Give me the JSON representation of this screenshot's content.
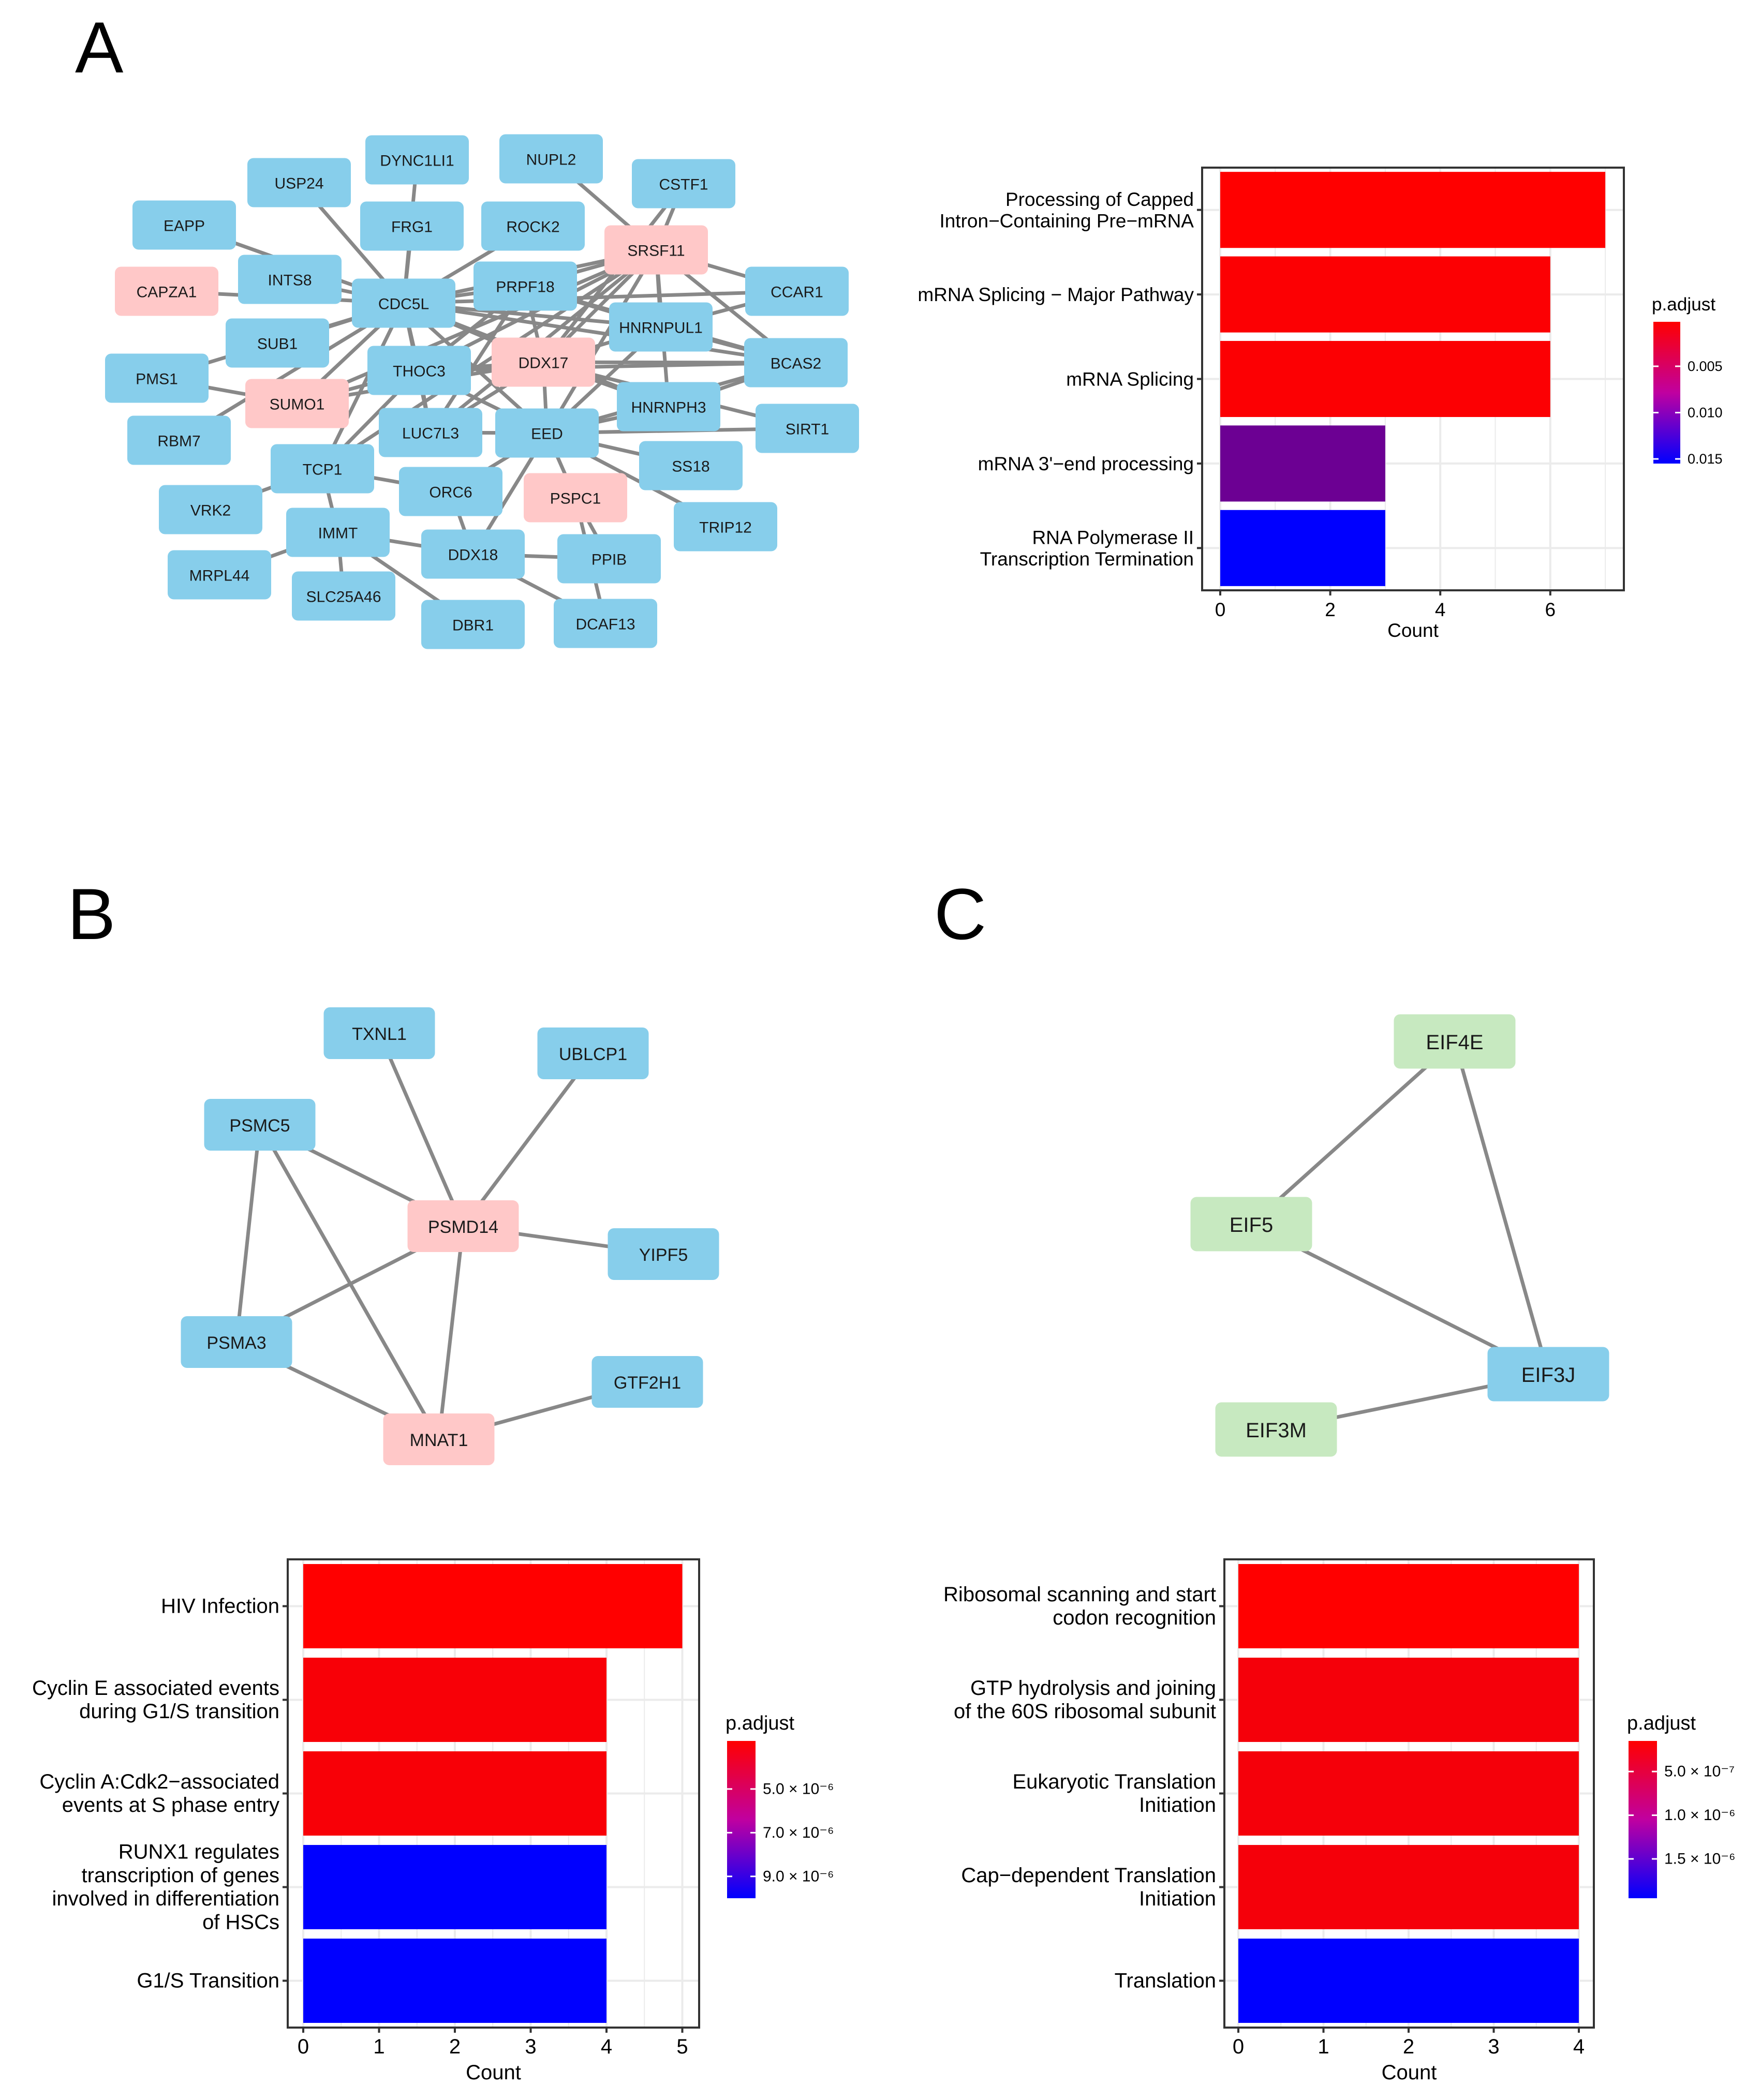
{
  "panel_labels": [
    "A",
    "B",
    "C"
  ],
  "colors": {
    "node_blue": "#87CEEB",
    "node_pink": "#FFC8C8",
    "node_green": "#C7E9C0",
    "edge": "#888888",
    "high": "#FF0000",
    "low": "#0000FF"
  },
  "networks": [
    {
      "id": "A",
      "nodes": [
        {
          "id": "DYNC1LI1",
          "color": "blue"
        },
        {
          "id": "NUPL2",
          "color": "blue"
        },
        {
          "id": "USP24",
          "color": "blue"
        },
        {
          "id": "CSTF1",
          "color": "blue"
        },
        {
          "id": "EAPP",
          "color": "blue"
        },
        {
          "id": "FRG1",
          "color": "blue"
        },
        {
          "id": "ROCK2",
          "color": "blue"
        },
        {
          "id": "SRSF11",
          "color": "pink"
        },
        {
          "id": "INTS8",
          "color": "blue"
        },
        {
          "id": "CAPZA1",
          "color": "pink"
        },
        {
          "id": "CDC5L",
          "color": "blue"
        },
        {
          "id": "PRPF18",
          "color": "blue"
        },
        {
          "id": "CCAR1",
          "color": "blue"
        },
        {
          "id": "HNRNPUL1",
          "color": "blue"
        },
        {
          "id": "SUB1",
          "color": "blue"
        },
        {
          "id": "DDX17",
          "color": "pink"
        },
        {
          "id": "BCAS2",
          "color": "blue"
        },
        {
          "id": "THOC3",
          "color": "blue"
        },
        {
          "id": "PMS1",
          "color": "blue"
        },
        {
          "id": "SUMO1",
          "color": "pink"
        },
        {
          "id": "HNRNPH3",
          "color": "blue"
        },
        {
          "id": "LUC7L3",
          "color": "blue"
        },
        {
          "id": "EED",
          "color": "blue"
        },
        {
          "id": "SIRT1",
          "color": "blue"
        },
        {
          "id": "RBM7",
          "color": "blue"
        },
        {
          "id": "TCP1",
          "color": "blue"
        },
        {
          "id": "SS18",
          "color": "blue"
        },
        {
          "id": "ORC6",
          "color": "blue"
        },
        {
          "id": "PSPC1",
          "color": "pink"
        },
        {
          "id": "VRK2",
          "color": "blue"
        },
        {
          "id": "TRIP12",
          "color": "blue"
        },
        {
          "id": "IMMT",
          "color": "blue"
        },
        {
          "id": "MRPL44",
          "color": "blue"
        },
        {
          "id": "DDX18",
          "color": "blue"
        },
        {
          "id": "PPIB",
          "color": "blue"
        },
        {
          "id": "SLC25A46",
          "color": "blue"
        },
        {
          "id": "DBR1",
          "color": "blue"
        },
        {
          "id": "DCAF13",
          "color": "blue"
        }
      ]
    },
    {
      "id": "B",
      "nodes": [
        {
          "id": "TXNL1",
          "color": "blue"
        },
        {
          "id": "UBLCP1",
          "color": "blue"
        },
        {
          "id": "PSMC5",
          "color": "blue"
        },
        {
          "id": "PSMD14",
          "color": "pink"
        },
        {
          "id": "YIPF5",
          "color": "blue"
        },
        {
          "id": "PSMA3",
          "color": "blue"
        },
        {
          "id": "GTF2H1",
          "color": "blue"
        },
        {
          "id": "MNAT1",
          "color": "pink"
        }
      ]
    },
    {
      "id": "C",
      "nodes": [
        {
          "id": "EIF4E",
          "color": "green"
        },
        {
          "id": "EIF5",
          "color": "green"
        },
        {
          "id": "EIF3J",
          "color": "blue"
        },
        {
          "id": "EIF3M",
          "color": "green"
        }
      ]
    }
  ],
  "chart_data": [
    {
      "panel": "A",
      "type": "bar",
      "orientation": "horizontal",
      "categories": [
        "Processing of Capped\nIntron−Containing Pre−mRNA",
        "mRNA Splicing − Major Pathway",
        "mRNA Splicing",
        "mRNA 3'−end processing",
        "RNA Polymerase II\nTranscription Termination"
      ],
      "values": [
        7,
        6,
        6,
        3,
        3
      ],
      "p_adjust": [
        0.0002,
        0.0004,
        0.0004,
        0.009,
        0.0155
      ],
      "xlabel": "Count",
      "xlim": [
        -0.3,
        7.3
      ],
      "xticks": [
        "0",
        "2",
        "4",
        "6"
      ],
      "legend_title": "p.adjust",
      "legend_range": [
        0.0002,
        0.0155
      ],
      "legend_ticks": [
        {
          "value": 0.005,
          "label": "0.005"
        },
        {
          "value": 0.01,
          "label": "0.010"
        },
        {
          "value": 0.015,
          "label": "0.015"
        }
      ]
    },
    {
      "panel": "B",
      "type": "bar",
      "orientation": "horizontal",
      "categories": [
        "HIV Infection",
        "Cyclin E associated events\nduring G1/S transition",
        "Cyclin A:Cdk2−associated\nevents at S phase entry",
        "RUNX1 regulates\ntranscription of genes\ninvolved in differentiation\nof HSCs",
        "G1/S Transition"
      ],
      "values": [
        5,
        4,
        4,
        4,
        4
      ],
      "p_adjust": [
        2.8e-06,
        3e-06,
        3e-06,
        1e-05,
        1e-05
      ],
      "xlabel": "Count",
      "xlim": [
        -0.25,
        5.25
      ],
      "xticks": [
        "0",
        "1",
        "2",
        "3",
        "4",
        "5"
      ],
      "legend_title": "p.adjust",
      "legend_range": [
        2.8e-06,
        1e-05
      ],
      "legend_ticks": [
        {
          "value": 5e-06,
          "label": "5.0 × 10⁻⁶"
        },
        {
          "value": 7e-06,
          "label": "7.0 × 10⁻⁶"
        },
        {
          "value": 9e-06,
          "label": "9.0 × 10⁻⁶"
        }
      ]
    },
    {
      "panel": "C",
      "type": "bar",
      "orientation": "horizontal",
      "categories": [
        "Ribosomal scanning and start\ncodon recognition",
        "GTP hydrolysis and joining\nof the 60S ribosomal subunit",
        "Eukaryotic Translation\nInitiation",
        "Cap−dependent Translation\nInitiation",
        "Translation"
      ],
      "values": [
        4,
        4,
        4,
        4,
        4
      ],
      "p_adjust": [
        1.5e-07,
        2.2e-07,
        2.2e-07,
        2.2e-07,
        1.95e-06
      ],
      "xlabel": "Count",
      "xlim": [
        -0.2,
        4.2
      ],
      "xticks": [
        "0",
        "1",
        "2",
        "3",
        "4"
      ],
      "legend_title": "p.adjust",
      "legend_range": [
        1.5e-07,
        1.95e-06
      ],
      "legend_ticks": [
        {
          "value": 5e-07,
          "label": "5.0 × 10⁻⁷"
        },
        {
          "value": 1e-06,
          "label": "1.0 × 10⁻⁶"
        },
        {
          "value": 1.5e-06,
          "label": "1.5 × 10⁻⁶"
        }
      ]
    }
  ]
}
